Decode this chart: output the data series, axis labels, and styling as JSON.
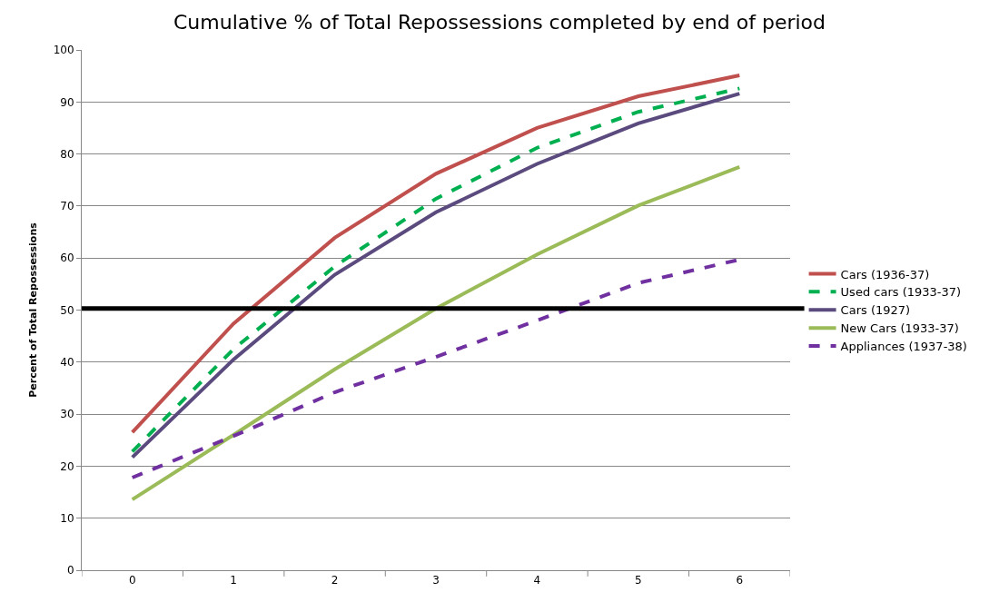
{
  "chart_data": {
    "type": "line",
    "title": "Cumulative % of Total Repossessions completed by end of period",
    "ylabel": "Percent of Total Repossessions",
    "categories": [
      "0",
      "1",
      "2",
      "3",
      "4",
      "5",
      "6"
    ],
    "series": [
      {
        "name": "Cars (1936-37)",
        "color": "#c0504d",
        "line_style": "solid",
        "values": [
          26.5,
          47.4,
          63.9,
          76.2,
          85.0,
          91.1,
          95.1
        ]
      },
      {
        "name": "Used cars (1933-37)",
        "color": "#00b050",
        "line_style": "dashed",
        "values": [
          22.8,
          42.5,
          58.4,
          71.4,
          81.2,
          88.1,
          92.6
        ]
      },
      {
        "name": "Cars (1927)",
        "color": "#5b4a7e",
        "line_style": "solid",
        "values": [
          21.7,
          40.5,
          56.8,
          68.8,
          78.1,
          85.9,
          91.6
        ]
      },
      {
        "name": "New Cars (1933-37)",
        "color": "#9bbb59",
        "line_style": "solid",
        "values": [
          13.6,
          26.0,
          38.6,
          50.3,
          60.7,
          70.1,
          77.5
        ]
      },
      {
        "name": "Appliances (1937-38)",
        "color": "#7030a0",
        "line_style": "dashed",
        "values": [
          17.8,
          25.8,
          34.2,
          41.0,
          48.0,
          55.2,
          59.7
        ]
      }
    ],
    "ylim": [
      0,
      100
    ],
    "yticks": [
      0,
      10,
      20,
      30,
      40,
      50,
      60,
      70,
      80,
      90,
      100
    ],
    "ref_lines": [
      {
        "axis": "y",
        "value": 50.3,
        "color": "#000000",
        "line_style": "solid"
      }
    ],
    "grid": "y",
    "legend": "right",
    "marker": "none"
  }
}
